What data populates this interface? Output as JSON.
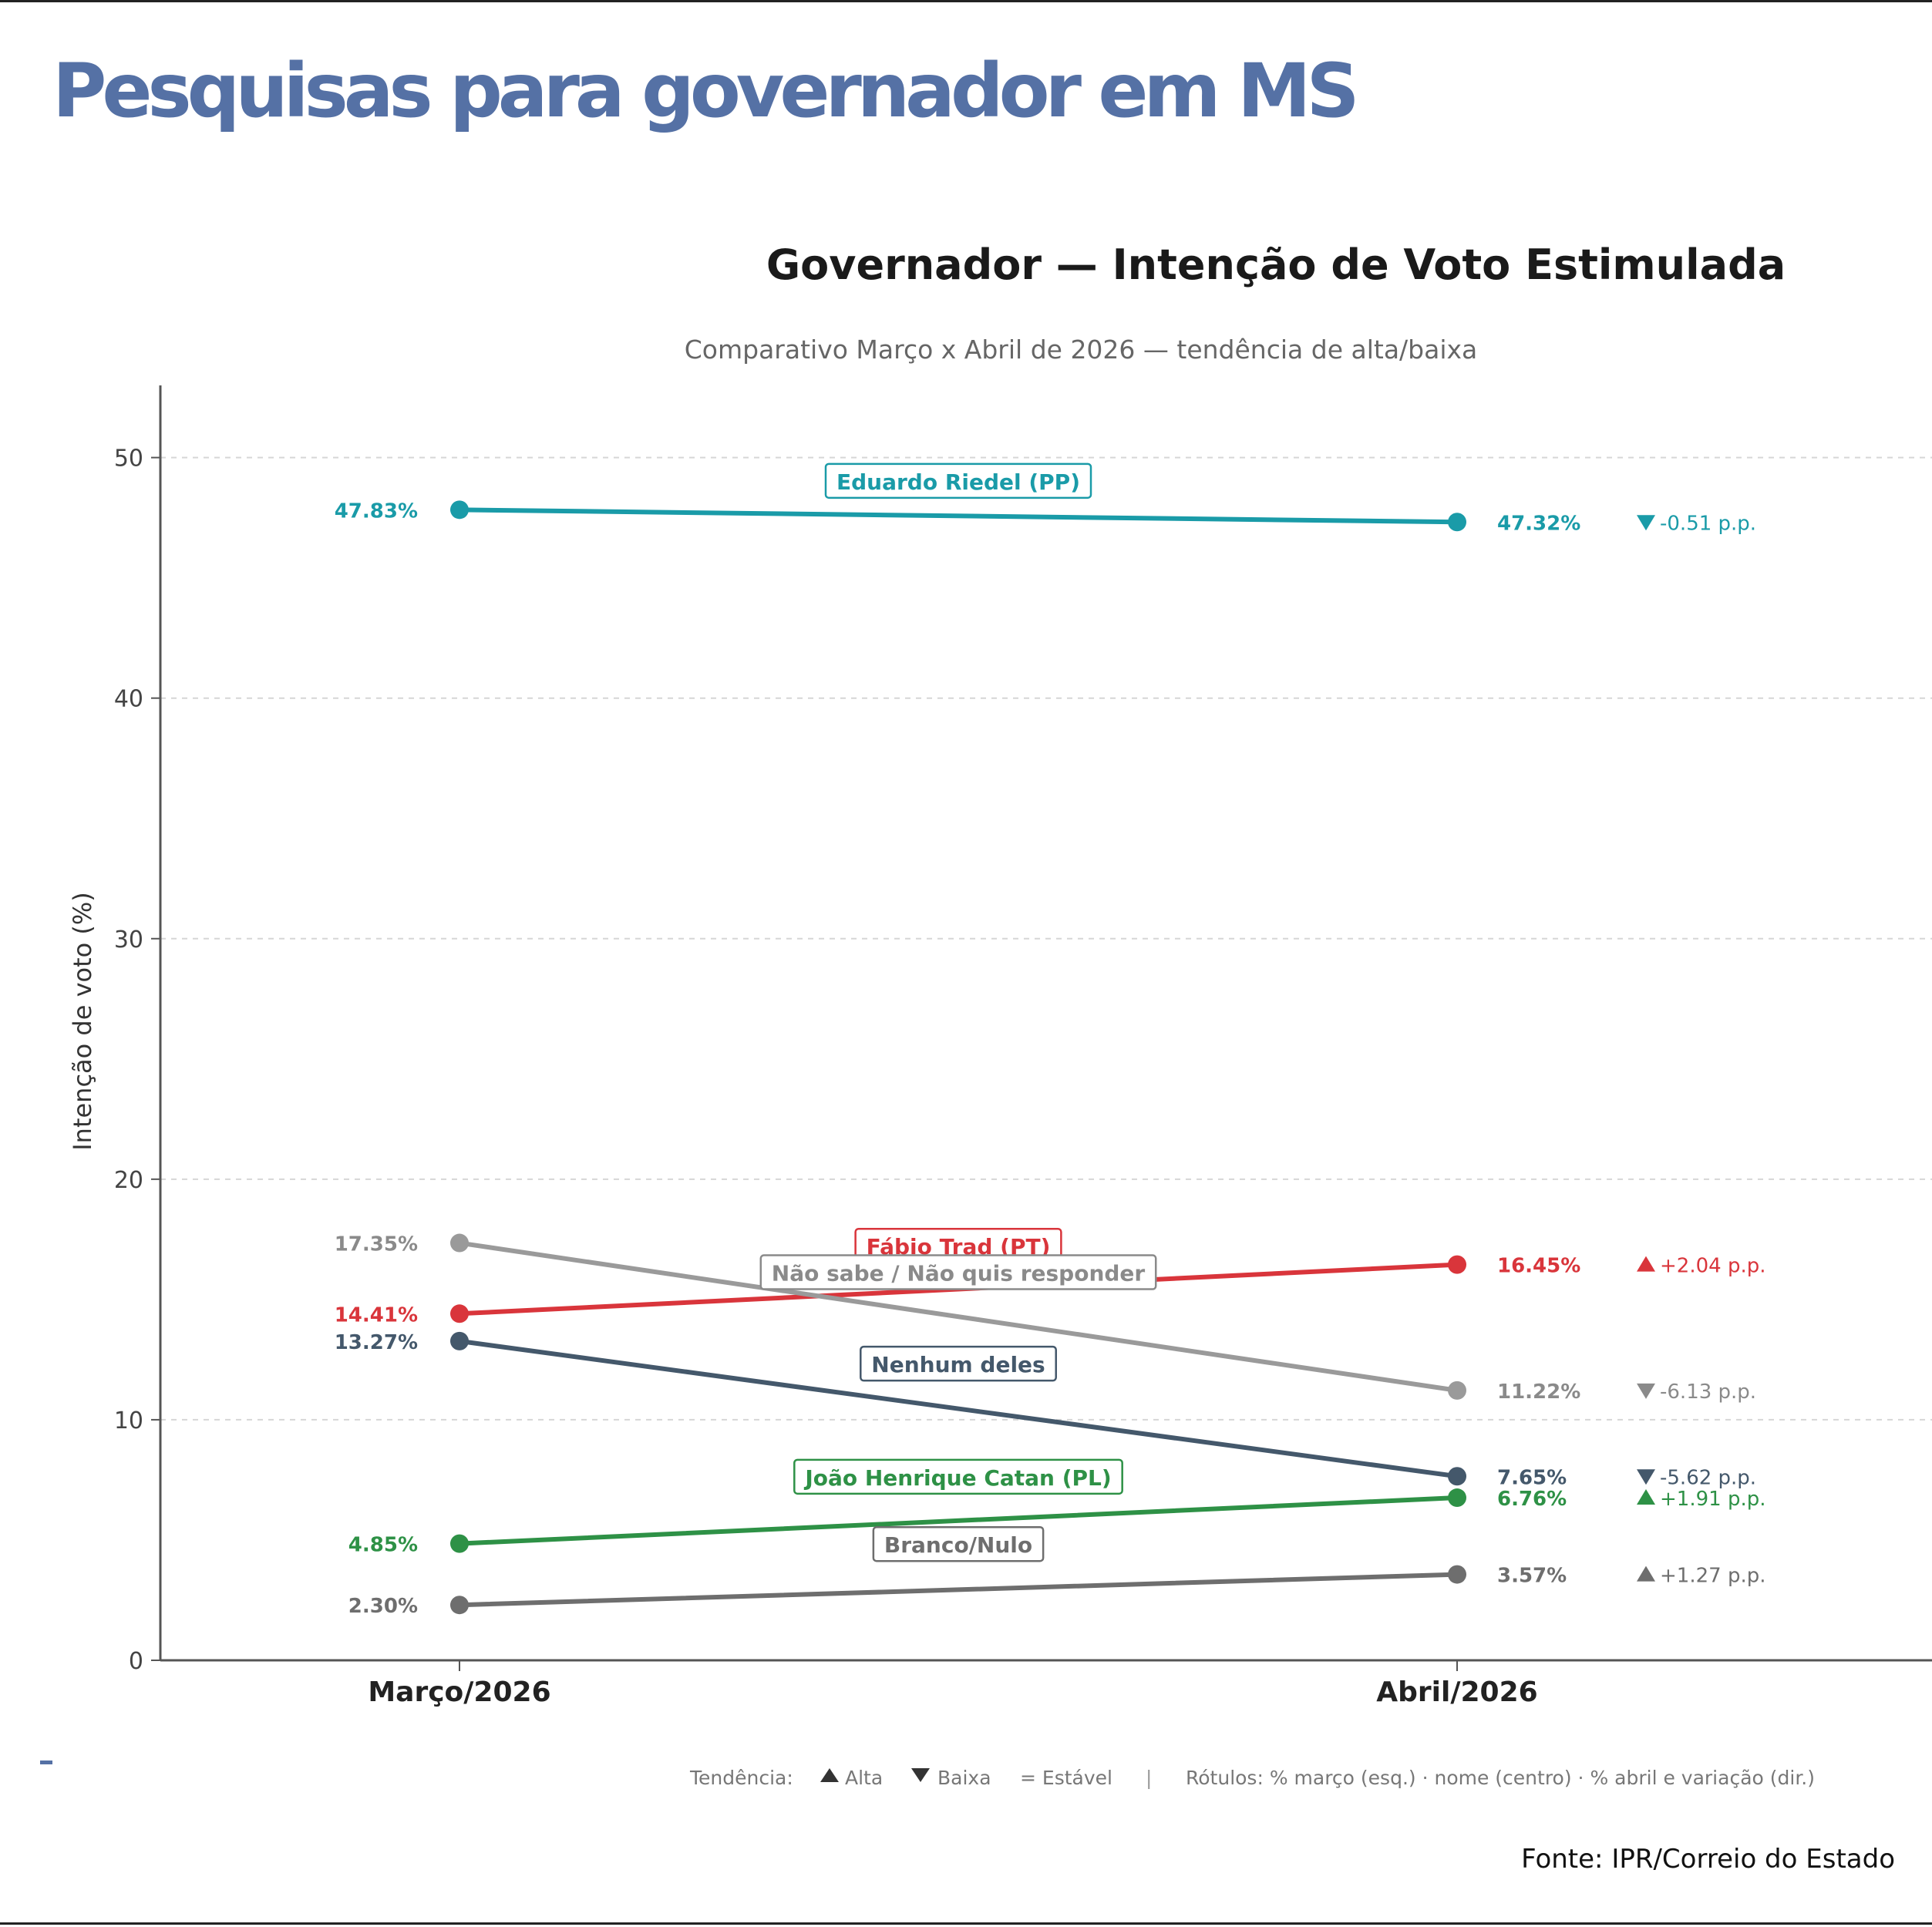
{
  "headline": "Pesquisas para governador em MS",
  "source": "Fonte: IPR/Correio do Estado",
  "chart_data": {
    "type": "line",
    "title": "Governador — Intenção de Voto Estimulada",
    "subtitle": "Comparativo Março x Abril de 2026 — tendência de alta/baixa",
    "xlabel": "",
    "ylabel": "Intenção de voto (%)",
    "categories": [
      "Março/2026",
      "Abril/2026"
    ],
    "ylim": [
      0,
      53
    ],
    "yticks": [
      0,
      10,
      20,
      30,
      40,
      50
    ],
    "grid": true,
    "series": [
      {
        "name": "Eduardo Riedel (PP)",
        "color": "#1a9ba8",
        "label_color": "#1a9ba8",
        "values": [
          47.83,
          47.32
        ],
        "label_left": "47.83%",
        "label_right": "47.32%",
        "trend_icon": "down-triangle-icon",
        "trend": "-0.51 p.p.",
        "label_pos": 49.0
      },
      {
        "name": "Fábio Trad (PT)",
        "color": "#d9353b",
        "label_color": "#d9353b",
        "values": [
          14.41,
          16.45
        ],
        "label_left": "14.41%",
        "label_right": "16.45%",
        "trend_icon": "up-triangle-icon",
        "trend": "+2.04 p.p.",
        "label_pos": 17.2
      },
      {
        "name": "Não sabe / Não quis responder",
        "color": "#9a9a9a",
        "label_color": "#8a8a8a",
        "values": [
          17.35,
          11.22
        ],
        "label_left": "17.35%",
        "label_right": "11.22%",
        "trend_icon": "down-triangle-icon",
        "trend": "-6.13 p.p.",
        "label_pos": 16.1
      },
      {
        "name": "Nenhum deles",
        "color": "#44586b",
        "label_color": "#44586b",
        "values": [
          13.27,
          7.65
        ],
        "label_left": "13.27%",
        "label_right": "7.65%",
        "trend_icon": "down-triangle-icon",
        "trend": "-5.62 p.p.",
        "label_pos": 12.3
      },
      {
        "name": "João Henrique Catan (PL)",
        "color": "#2e9146",
        "label_color": "#2e9146",
        "values": [
          4.85,
          6.76
        ],
        "label_left": "4.85%",
        "label_right": "6.76%",
        "trend_icon": "up-triangle-icon",
        "trend": "+1.91 p.p.",
        "label_pos": 7.6
      },
      {
        "name": "Branco/Nulo",
        "color": "#6e6e6e",
        "label_color": "#6e6e6e",
        "values": [
          2.3,
          3.57
        ],
        "label_left": "2.30%",
        "label_right": "3.57%",
        "trend_icon": "up-triangle-icon",
        "trend": "+1.27 p.p.",
        "label_pos": 4.8
      }
    ],
    "legend": {
      "trend_label": "Tendência:",
      "alta": "Alta",
      "baixa": "Baixa",
      "estavel": "= Estável",
      "separator": "|",
      "note": "Rótulos: % março (esq.) · nome (centro) · % abril e variação (dir.)"
    }
  }
}
